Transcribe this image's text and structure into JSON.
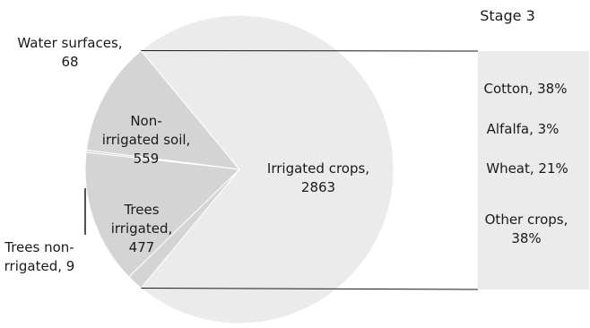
{
  "chart_data": {
    "type": "pie",
    "title": "",
    "slices": [
      {
        "label": "Irrigated crops",
        "value": 2863,
        "color": "#ebebeb"
      },
      {
        "label": "Trees irrigated",
        "value": 477,
        "color": "#d4d4d4"
      },
      {
        "label": "Trees non-rigated",
        "value": 9,
        "color": "#d4d4d4"
      },
      {
        "label": "Non-irrigated soil",
        "value": 559,
        "color": "#d4d4d4"
      },
      {
        "label": "Water surfaces",
        "value": 68,
        "color": "#d4d4d4"
      }
    ],
    "slice_labels": {
      "irrigated": [
        "Irrigated crops,",
        "2863"
      ],
      "trees_irrigated": [
        "Trees",
        "irrigated,",
        "477"
      ],
      "trees_non": [
        "Trees non-",
        "rrigated, 9"
      ],
      "non_irrigated": [
        "Non-",
        "irrigated soil,",
        "559"
      ],
      "water": [
        "Water surfaces,",
        "68"
      ]
    },
    "breakdown": {
      "title": "Stage 3",
      "color": "#ebebeb",
      "items": [
        {
          "text": "Cotton, 38%",
          "label": "Cotton",
          "percent": 38
        },
        {
          "text": "Alfalfa, 3%",
          "label": "Alfalfa",
          "percent": 3
        },
        {
          "text": "Wheat, 21%",
          "label": "Wheat",
          "percent": 21
        },
        {
          "text": [
            "Other crops,",
            "38%"
          ],
          "label": "Other crops",
          "percent": 38
        }
      ]
    }
  }
}
